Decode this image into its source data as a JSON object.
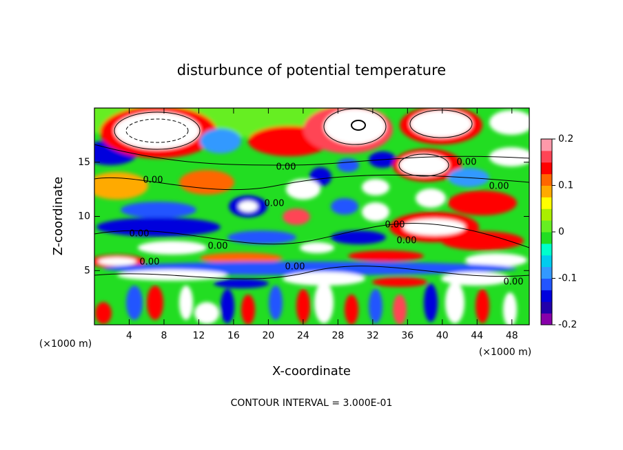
{
  "chart_data": {
    "type": "contour",
    "title": "disturbunce of potential temperature",
    "x_label": "X-coordinate",
    "y_label": "Z-coordinate",
    "x_unit": "(×1000 m)",
    "y_unit": "(×1000 m)",
    "footnote": "CONTOUR INTERVAL = 3.000E-01",
    "xlim": [
      0,
      50
    ],
    "xticks": [
      4,
      8,
      12,
      16,
      20,
      24,
      28,
      32,
      36,
      40,
      44,
      48
    ],
    "ylim": [
      0,
      20
    ],
    "yticks": [
      5,
      10,
      15
    ],
    "contour_labels": [
      "0.00",
      "0.00",
      "0.00",
      "0.00",
      "0.00",
      "0.00",
      "0.00",
      "0.00",
      "0.00",
      "0.00",
      "0.00",
      "0.00"
    ],
    "colorbar": {
      "lim": [
        -0.2,
        0.2
      ],
      "ticks": [
        0.2,
        0.1,
        0,
        -0.1,
        -0.2
      ],
      "colors": [
        "#8800aa",
        "#2200aa",
        "#0000dd",
        "#2255ff",
        "#3399ff",
        "#00ccee",
        "#00ffcc",
        "#22dd22",
        "#66ee22",
        "#aaee00",
        "#ffff00",
        "#ffaa00",
        "#ff6600",
        "#ff0000",
        "#ff4455",
        "#ff99aa"
      ]
    }
  }
}
